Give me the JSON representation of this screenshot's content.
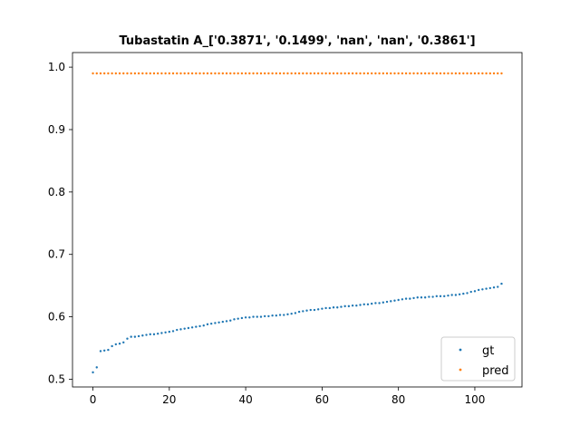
{
  "chart_data": {
    "type": "scatter",
    "title": "Tubastatin A_['0.3871', '0.1499', 'nan', 'nan', '0.3861']",
    "xlabel": "",
    "ylabel": "",
    "xlim": [
      -5.35,
      112.35
    ],
    "ylim": [
      0.4876,
      1.0234
    ],
    "xticks": [
      0,
      20,
      40,
      60,
      80,
      100
    ],
    "yticks": [
      0.5,
      0.6,
      0.7,
      0.8,
      0.9,
      1.0
    ],
    "ytick_labels": [
      "0.5",
      "0.6",
      "0.7",
      "0.8",
      "0.9",
      "1.0"
    ],
    "legend_position": "lower-right",
    "grid": false,
    "series": [
      {
        "name": "gt",
        "color": "#1f77b4",
        "x": [
          0,
          1,
          2,
          3,
          4,
          5,
          6,
          7,
          8,
          9,
          10,
          11,
          12,
          13,
          14,
          15,
          16,
          17,
          18,
          19,
          20,
          21,
          22,
          23,
          24,
          25,
          26,
          27,
          28,
          29,
          30,
          31,
          32,
          33,
          34,
          35,
          36,
          37,
          38,
          39,
          40,
          41,
          42,
          43,
          44,
          45,
          46,
          47,
          48,
          49,
          50,
          51,
          52,
          53,
          54,
          55,
          56,
          57,
          58,
          59,
          60,
          61,
          62,
          63,
          64,
          65,
          66,
          67,
          68,
          69,
          70,
          71,
          72,
          73,
          74,
          75,
          76,
          77,
          78,
          79,
          80,
          81,
          82,
          83,
          84,
          85,
          86,
          87,
          88,
          89,
          90,
          91,
          92,
          93,
          94,
          95,
          96,
          97,
          98,
          99,
          100,
          101,
          102,
          103,
          104,
          105,
          106,
          107
        ],
        "y": [
          0.511,
          0.519,
          0.545,
          0.546,
          0.547,
          0.553,
          0.556,
          0.557,
          0.559,
          0.565,
          0.568,
          0.568,
          0.569,
          0.57,
          0.571,
          0.572,
          0.572,
          0.573,
          0.574,
          0.575,
          0.576,
          0.577,
          0.579,
          0.58,
          0.581,
          0.582,
          0.583,
          0.584,
          0.585,
          0.586,
          0.588,
          0.589,
          0.59,
          0.591,
          0.592,
          0.593,
          0.594,
          0.596,
          0.597,
          0.598,
          0.599,
          0.599,
          0.6,
          0.6,
          0.6,
          0.601,
          0.601,
          0.602,
          0.602,
          0.603,
          0.603,
          0.604,
          0.605,
          0.606,
          0.608,
          0.609,
          0.61,
          0.611,
          0.611,
          0.612,
          0.613,
          0.614,
          0.614,
          0.615,
          0.615,
          0.616,
          0.617,
          0.617,
          0.618,
          0.618,
          0.619,
          0.62,
          0.62,
          0.621,
          0.622,
          0.622,
          0.623,
          0.624,
          0.625,
          0.626,
          0.627,
          0.628,
          0.629,
          0.629,
          0.63,
          0.631,
          0.631,
          0.631,
          0.632,
          0.632,
          0.633,
          0.633,
          0.633,
          0.634,
          0.635,
          0.635,
          0.636,
          0.637,
          0.638,
          0.64,
          0.641,
          0.643,
          0.644,
          0.645,
          0.646,
          0.647,
          0.648,
          0.653
        ]
      },
      {
        "name": "pred",
        "color": "#ff7f0e",
        "x": [
          0,
          1,
          2,
          3,
          4,
          5,
          6,
          7,
          8,
          9,
          10,
          11,
          12,
          13,
          14,
          15,
          16,
          17,
          18,
          19,
          20,
          21,
          22,
          23,
          24,
          25,
          26,
          27,
          28,
          29,
          30,
          31,
          32,
          33,
          34,
          35,
          36,
          37,
          38,
          39,
          40,
          41,
          42,
          43,
          44,
          45,
          46,
          47,
          48,
          49,
          50,
          51,
          52,
          53,
          54,
          55,
          56,
          57,
          58,
          59,
          60,
          61,
          62,
          63,
          64,
          65,
          66,
          67,
          68,
          69,
          70,
          71,
          72,
          73,
          74,
          75,
          76,
          77,
          78,
          79,
          80,
          81,
          82,
          83,
          84,
          85,
          86,
          87,
          88,
          89,
          90,
          91,
          92,
          93,
          94,
          95,
          96,
          97,
          98,
          99,
          100,
          101,
          102,
          103,
          104,
          105,
          106,
          107
        ],
        "y": [
          0.99,
          0.99,
          0.99,
          0.99,
          0.99,
          0.99,
          0.99,
          0.99,
          0.99,
          0.99,
          0.99,
          0.99,
          0.99,
          0.99,
          0.99,
          0.99,
          0.99,
          0.99,
          0.99,
          0.99,
          0.99,
          0.99,
          0.99,
          0.99,
          0.99,
          0.99,
          0.99,
          0.99,
          0.99,
          0.99,
          0.99,
          0.99,
          0.99,
          0.99,
          0.99,
          0.99,
          0.99,
          0.99,
          0.99,
          0.99,
          0.99,
          0.99,
          0.99,
          0.99,
          0.99,
          0.99,
          0.99,
          0.99,
          0.99,
          0.99,
          0.99,
          0.99,
          0.99,
          0.99,
          0.99,
          0.99,
          0.99,
          0.99,
          0.99,
          0.99,
          0.99,
          0.99,
          0.99,
          0.99,
          0.99,
          0.99,
          0.99,
          0.99,
          0.99,
          0.99,
          0.99,
          0.99,
          0.99,
          0.99,
          0.99,
          0.99,
          0.99,
          0.99,
          0.99,
          0.99,
          0.99,
          0.99,
          0.99,
          0.99,
          0.99,
          0.99,
          0.99,
          0.99,
          0.99,
          0.99,
          0.99,
          0.99,
          0.99,
          0.99,
          0.99,
          0.99,
          0.99,
          0.99,
          0.99,
          0.99,
          0.99,
          0.99,
          0.99,
          0.99,
          0.99,
          0.99,
          0.99,
          0.99
        ]
      }
    ]
  }
}
